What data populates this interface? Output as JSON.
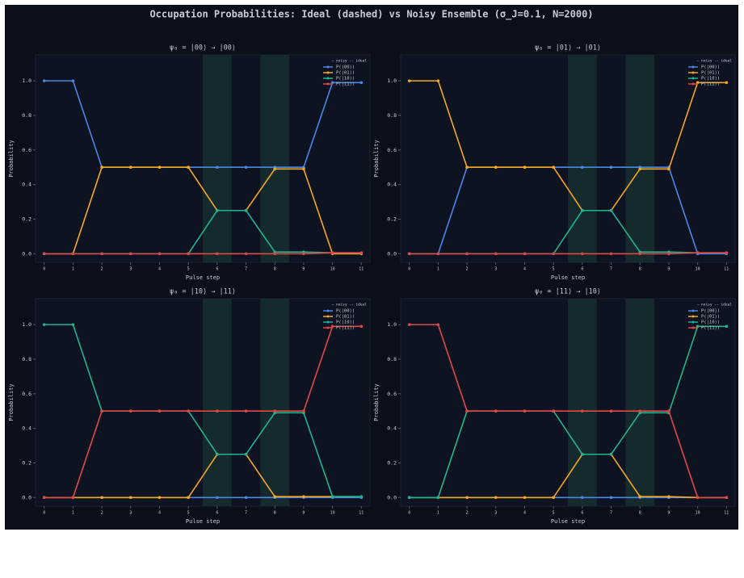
{
  "title": "Occupation Probabilities: Ideal (dashed) vs Noisy Ensemble (σ_J=0.1, N=2000)",
  "chart_data": [
    {
      "type": "line",
      "title": "ψ₀ = |00⟩  →  |00⟩",
      "xlabel": "Pulse step",
      "ylabel": "Probability",
      "legend_title": "— noisy  -- ideal",
      "legend": "upper right",
      "x": [
        0,
        1,
        2,
        3,
        4,
        5,
        6,
        7,
        8,
        9,
        10,
        11
      ],
      "xlim": [
        -0.3,
        11.3
      ],
      "xticks": [
        0,
        1,
        2,
        3,
        4,
        5,
        6,
        7,
        8,
        9,
        10,
        11
      ],
      "ylim": [
        -0.05,
        1.15
      ],
      "yticks": [
        {
          "value": 0,
          "label": "0.0"
        },
        0.2,
        0.4,
        0.6,
        0.8,
        {
          "value": 1,
          "label": "1.0"
        }
      ],
      "highlight_spans": [
        [
          5.5,
          6.5
        ],
        [
          7.5,
          8.5
        ]
      ],
      "series": [
        {
          "name": "P(|00⟩)",
          "color": "#4a86e8",
          "values": [
            1,
            1,
            0.5,
            0.5,
            0.5,
            0.5,
            0.5,
            0.5,
            0.5,
            0.5,
            0.99,
            0.99
          ]
        },
        {
          "name": "P(|01⟩)",
          "color": "#f5a623",
          "values": [
            0,
            0,
            0.5,
            0.5,
            0.5,
            0.5,
            0.25,
            0.25,
            0.49,
            0.49,
            0,
            0
          ]
        },
        {
          "name": "P(|10⟩)",
          "color": "#1fb58f",
          "values": [
            0,
            0,
            0,
            0,
            0,
            0,
            0.25,
            0.25,
            0.01,
            0.01,
            0.005,
            0.005
          ]
        },
        {
          "name": "P(|11⟩)",
          "color": "#e04848",
          "values": [
            0,
            0,
            0,
            0,
            0,
            0,
            0,
            0,
            0,
            0,
            0.005,
            0.005
          ]
        }
      ]
    },
    {
      "type": "line",
      "title": "ψ₀ = |01⟩  →  |01⟩",
      "xlabel": "Pulse step",
      "ylabel": "Probability",
      "legend_title": "— noisy  -- ideal",
      "legend": "upper right",
      "x": [
        0,
        1,
        2,
        3,
        4,
        5,
        6,
        7,
        8,
        9,
        10,
        11
      ],
      "xlim": [
        -0.3,
        11.3
      ],
      "xticks": [
        0,
        1,
        2,
        3,
        4,
        5,
        6,
        7,
        8,
        9,
        10,
        11
      ],
      "ylim": [
        -0.05,
        1.15
      ],
      "yticks": [
        {
          "value": 0,
          "label": "0.0"
        },
        0.2,
        0.4,
        0.6,
        0.8,
        {
          "value": 1,
          "label": "1.0"
        }
      ],
      "highlight_spans": [
        [
          5.5,
          6.5
        ],
        [
          7.5,
          8.5
        ]
      ],
      "series": [
        {
          "name": "P(|00⟩)",
          "color": "#4a86e8",
          "values": [
            0,
            0,
            0.5,
            0.5,
            0.5,
            0.5,
            0.5,
            0.5,
            0.5,
            0.5,
            0,
            0
          ]
        },
        {
          "name": "P(|01⟩)",
          "color": "#f5a623",
          "values": [
            1,
            1,
            0.5,
            0.5,
            0.5,
            0.5,
            0.25,
            0.25,
            0.49,
            0.49,
            0.99,
            0.99
          ]
        },
        {
          "name": "P(|10⟩)",
          "color": "#1fb58f",
          "values": [
            0,
            0,
            0,
            0,
            0,
            0,
            0.25,
            0.25,
            0.01,
            0.01,
            0.005,
            0.005
          ]
        },
        {
          "name": "P(|11⟩)",
          "color": "#e04848",
          "values": [
            0,
            0,
            0,
            0,
            0,
            0,
            0,
            0,
            0,
            0,
            0.005,
            0.005
          ]
        }
      ]
    },
    {
      "type": "line",
      "title": "ψ₀ = |10⟩  →  |11⟩",
      "xlabel": "Pulse step",
      "ylabel": "Probability",
      "legend_title": "— noisy  -- ideal",
      "legend": "upper right",
      "x": [
        0,
        1,
        2,
        3,
        4,
        5,
        6,
        7,
        8,
        9,
        10,
        11
      ],
      "xlim": [
        -0.3,
        11.3
      ],
      "xticks": [
        0,
        1,
        2,
        3,
        4,
        5,
        6,
        7,
        8,
        9,
        10,
        11
      ],
      "ylim": [
        -0.05,
        1.15
      ],
      "yticks": [
        {
          "value": 0,
          "label": "0.0"
        },
        0.2,
        0.4,
        0.6,
        0.8,
        {
          "value": 1,
          "label": "1.0"
        }
      ],
      "highlight_spans": [
        [
          5.5,
          6.5
        ],
        [
          7.5,
          8.5
        ]
      ],
      "series": [
        {
          "name": "P(|00⟩)",
          "color": "#4a86e8",
          "values": [
            0,
            0,
            0,
            0,
            0,
            0,
            0,
            0,
            0,
            0,
            0,
            0
          ]
        },
        {
          "name": "P(|01⟩)",
          "color": "#f5a623",
          "values": [
            0,
            0,
            0,
            0,
            0,
            0,
            0.25,
            0.25,
            0.005,
            0.005,
            0.005,
            0.005
          ]
        },
        {
          "name": "P(|10⟩)",
          "color": "#1fb58f",
          "values": [
            1,
            1,
            0.5,
            0.5,
            0.5,
            0.5,
            0.25,
            0.25,
            0.49,
            0.49,
            0.005,
            0.005
          ]
        },
        {
          "name": "P(|11⟩)",
          "color": "#e04848",
          "values": [
            0,
            0,
            0.5,
            0.5,
            0.5,
            0.5,
            0.5,
            0.5,
            0.5,
            0.5,
            0.99,
            0.99
          ]
        }
      ]
    },
    {
      "type": "line",
      "title": "ψ₀ = |11⟩  →  |10⟩",
      "xlabel": "Pulse step",
      "ylabel": "Probability",
      "legend_title": "— noisy  -- ideal",
      "legend": "upper right",
      "x": [
        0,
        1,
        2,
        3,
        4,
        5,
        6,
        7,
        8,
        9,
        10,
        11
      ],
      "xlim": [
        -0.3,
        11.3
      ],
      "xticks": [
        0,
        1,
        2,
        3,
        4,
        5,
        6,
        7,
        8,
        9,
        10,
        11
      ],
      "ylim": [
        -0.05,
        1.15
      ],
      "yticks": [
        {
          "value": 0,
          "label": "0.0"
        },
        0.2,
        0.4,
        0.6,
        0.8,
        {
          "value": 1,
          "label": "1.0"
        }
      ],
      "highlight_spans": [
        [
          5.5,
          6.5
        ],
        [
          7.5,
          8.5
        ]
      ],
      "series": [
        {
          "name": "P(|00⟩)",
          "color": "#4a86e8",
          "values": [
            0,
            0,
            0,
            0,
            0,
            0,
            0,
            0,
            0,
            0,
            0,
            0
          ]
        },
        {
          "name": "P(|01⟩)",
          "color": "#f5a623",
          "values": [
            0,
            0,
            0,
            0,
            0,
            0,
            0.25,
            0.25,
            0.005,
            0.005,
            0,
            0
          ]
        },
        {
          "name": "P(|10⟩)",
          "color": "#1fb58f",
          "values": [
            0,
            0,
            0.5,
            0.5,
            0.5,
            0.5,
            0.25,
            0.25,
            0.49,
            0.49,
            0.99,
            0.99
          ]
        },
        {
          "name": "P(|11⟩)",
          "color": "#e04848",
          "values": [
            1,
            1,
            0.5,
            0.5,
            0.5,
            0.5,
            0.5,
            0.5,
            0.5,
            0.5,
            0,
            0
          ]
        }
      ]
    }
  ]
}
